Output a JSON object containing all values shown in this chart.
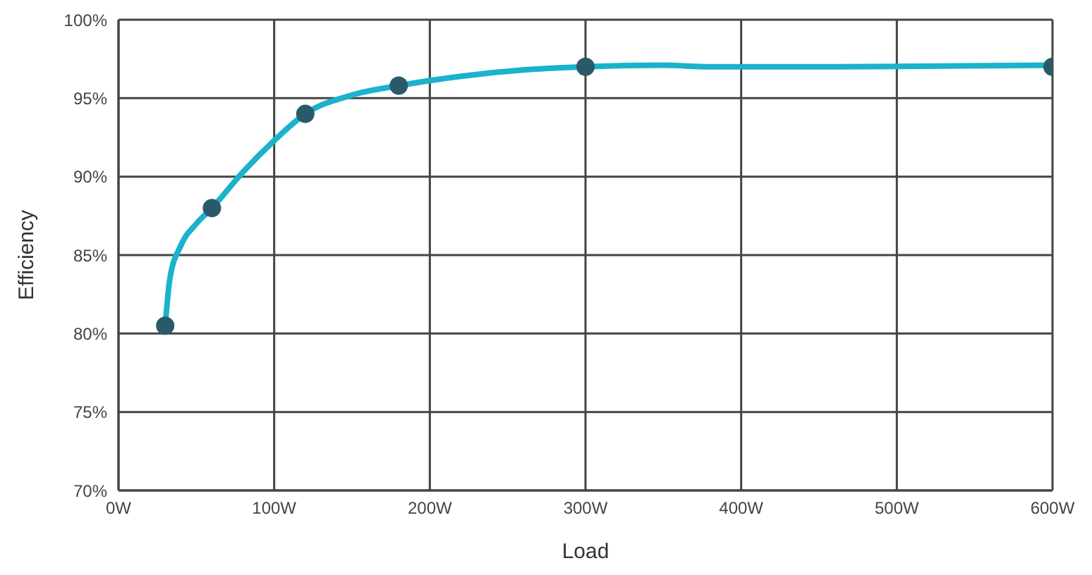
{
  "chart_data": {
    "type": "line",
    "xlabel": "Load",
    "ylabel": "Efficiency",
    "xlim": [
      0,
      600
    ],
    "xticks": [
      {
        "value": 0,
        "label": "0W"
      },
      {
        "value": 100,
        "label": "100W"
      },
      {
        "value": 200,
        "label": "200W"
      },
      {
        "value": 300,
        "label": "300W"
      },
      {
        "value": 400,
        "label": "400W"
      },
      {
        "value": 500,
        "label": "500W"
      },
      {
        "value": 600,
        "label": "600W"
      }
    ],
    "ylim": [
      70,
      100
    ],
    "yticks": [
      {
        "value": 70,
        "label": "70%"
      },
      {
        "value": 75,
        "label": "75%"
      },
      {
        "value": 80,
        "label": "80%"
      },
      {
        "value": 85,
        "label": "85%"
      },
      {
        "value": 90,
        "label": "90%"
      },
      {
        "value": 95,
        "label": "95%"
      },
      {
        "value": 100,
        "label": "100%"
      }
    ],
    "grid": true,
    "legend": false,
    "series": [
      {
        "color": "#1ab2cc",
        "marker": "none",
        "x": [
          30,
          33,
          40,
          50,
          60,
          80,
          100,
          120,
          150,
          180,
          220,
          260,
          300,
          350,
          380,
          450,
          600
        ],
        "values": [
          80.5,
          83.5,
          85.6,
          87.0,
          88.0,
          90.3,
          92.3,
          94.0,
          95.2,
          95.8,
          96.4,
          96.8,
          97.0,
          97.1,
          97.0,
          97.0,
          97.1
        ]
      },
      {
        "type": "scatter",
        "color": "#2a5a6a",
        "marker": "circle",
        "x": [
          30,
          60,
          120,
          180,
          300,
          600
        ],
        "values": [
          80.5,
          88.0,
          94.0,
          95.8,
          97.0,
          97.0
        ]
      }
    ]
  }
}
